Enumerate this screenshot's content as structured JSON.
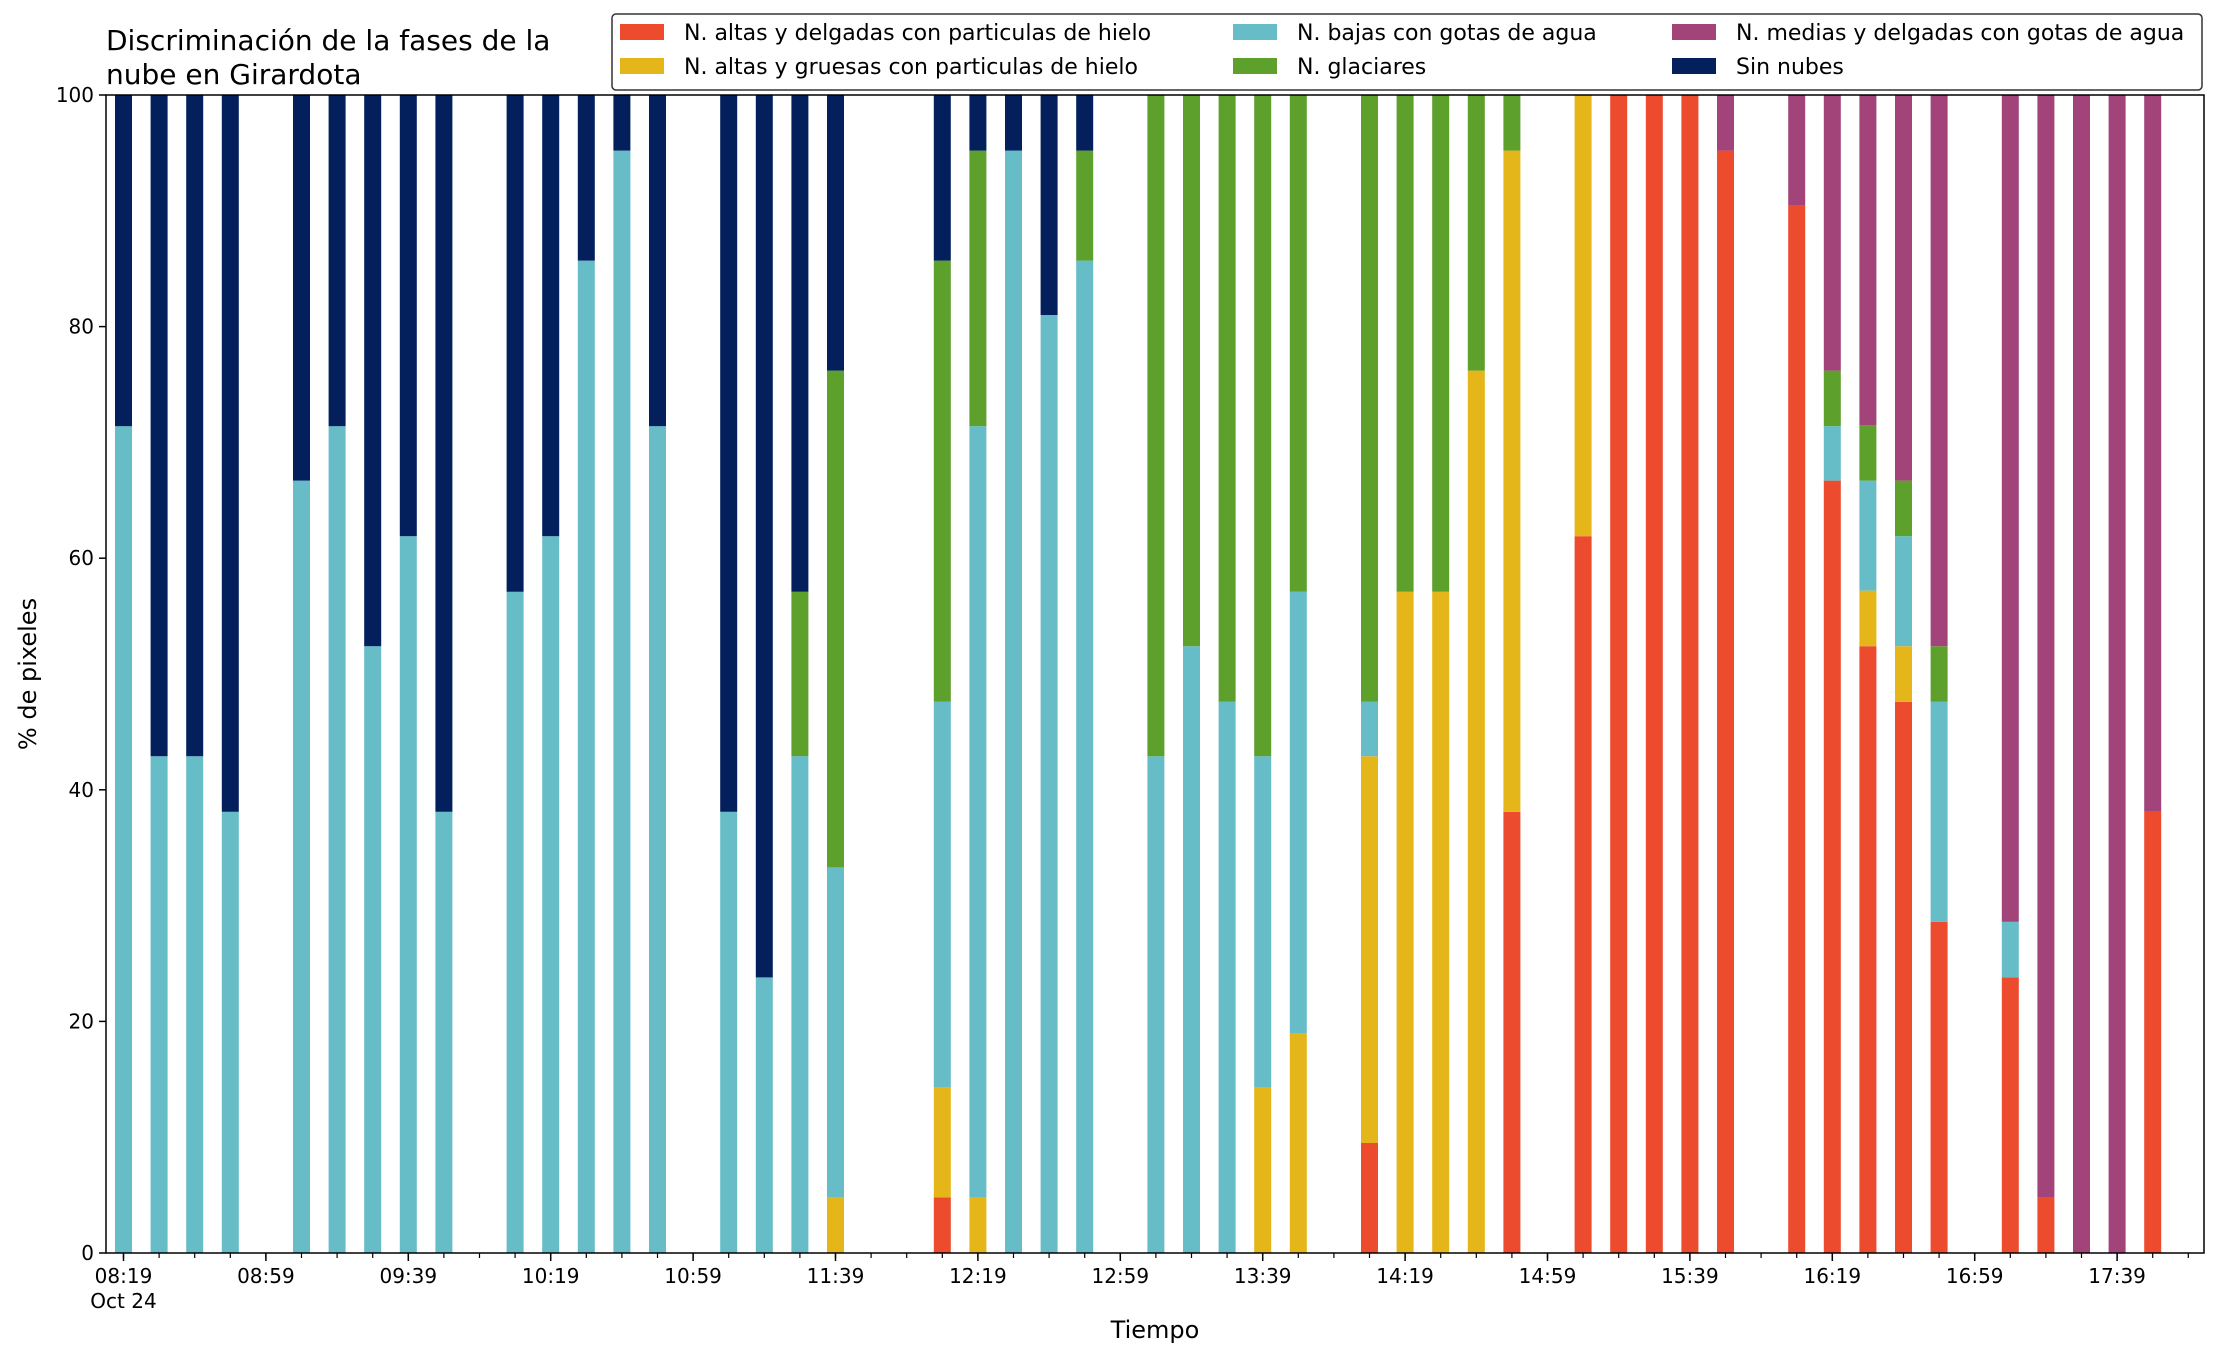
{
  "chart_data": {
    "type": "bar",
    "stacked": true,
    "title_lines": [
      "Discriminación de la fases de la",
      "nube en Girardota"
    ],
    "xlabel": "Tiempo",
    "ylabel": "% de pixeles",
    "ylim": [
      0,
      100
    ],
    "yticks": [
      0,
      20,
      40,
      60,
      80,
      100
    ],
    "x_start": "08:19",
    "x_step_minutes": 10,
    "x_count": 59,
    "x_ticks": [
      {
        "index": 0,
        "label": "08:19",
        "sublabel": "Oct 24"
      },
      {
        "index": 4,
        "label": "08:59"
      },
      {
        "index": 8,
        "label": "09:39"
      },
      {
        "index": 12,
        "label": "10:19"
      },
      {
        "index": 16,
        "label": "10:59"
      },
      {
        "index": 20,
        "label": "11:39"
      },
      {
        "index": 24,
        "label": "12:19"
      },
      {
        "index": 28,
        "label": "12:59"
      },
      {
        "index": 32,
        "label": "13:39"
      },
      {
        "index": 36,
        "label": "14:19"
      },
      {
        "index": 40,
        "label": "14:59"
      },
      {
        "index": 44,
        "label": "15:39"
      },
      {
        "index": 48,
        "label": "16:19"
      },
      {
        "index": 52,
        "label": "16:59"
      },
      {
        "index": 56,
        "label": "17:39"
      }
    ],
    "grid": false,
    "legend_position": "top-right",
    "series": [
      {
        "name": "N. altas y delgadas con particulas de hielo",
        "color": "#ed4b2e"
      },
      {
        "name": "N. altas y gruesas con particulas de hielo",
        "color": "#e5b619"
      },
      {
        "name": "N. bajas con gotas de agua",
        "color": "#66bdc8"
      },
      {
        "name": "N. glaciares",
        "color": "#5ea02c"
      },
      {
        "name": "N. medias y delgadas con gotas de agua",
        "color": "#a2447a"
      },
      {
        "name": "Sin nubes",
        "color": "#03205d"
      }
    ],
    "bars": [
      {
        "index": 0,
        "time": "08:19",
        "values": [
          0,
          0,
          71.4,
          0,
          0,
          28.6
        ]
      },
      {
        "index": 1,
        "time": "08:29",
        "values": [
          0,
          0,
          42.9,
          0,
          0,
          57.1
        ]
      },
      {
        "index": 2,
        "time": "08:39",
        "values": [
          0,
          0,
          42.9,
          0,
          0,
          57.1
        ]
      },
      {
        "index": 3,
        "time": "08:49",
        "values": [
          0,
          0,
          38.1,
          0,
          0,
          61.9
        ]
      },
      {
        "index": 5,
        "time": "09:09",
        "values": [
          0,
          0,
          66.7,
          0,
          0,
          33.3
        ]
      },
      {
        "index": 6,
        "time": "09:19",
        "values": [
          0,
          0,
          71.4,
          0,
          0,
          28.6
        ]
      },
      {
        "index": 7,
        "time": "09:29",
        "values": [
          0,
          0,
          52.4,
          0,
          0,
          47.6
        ]
      },
      {
        "index": 8,
        "time": "09:39",
        "values": [
          0,
          0,
          61.9,
          0,
          0,
          38.1
        ]
      },
      {
        "index": 9,
        "time": "09:49",
        "values": [
          0,
          0,
          38.1,
          0,
          0,
          61.9
        ]
      },
      {
        "index": 11,
        "time": "10:09",
        "values": [
          0,
          0,
          57.1,
          0,
          0,
          42.9
        ]
      },
      {
        "index": 12,
        "time": "10:19",
        "values": [
          0,
          0,
          61.9,
          0,
          0,
          38.1
        ]
      },
      {
        "index": 13,
        "time": "10:29",
        "values": [
          0,
          0,
          85.7,
          0,
          0,
          14.3
        ]
      },
      {
        "index": 14,
        "time": "10:39",
        "values": [
          0,
          0,
          95.2,
          0,
          0,
          4.8
        ]
      },
      {
        "index": 15,
        "time": "10:49",
        "values": [
          0,
          0,
          71.4,
          0,
          0,
          28.6
        ]
      },
      {
        "index": 17,
        "time": "11:09",
        "values": [
          0,
          0,
          38.1,
          0,
          0,
          61.9
        ]
      },
      {
        "index": 18,
        "time": "11:19",
        "values": [
          0,
          0,
          23.8,
          0,
          0,
          76.2
        ]
      },
      {
        "index": 19,
        "time": "11:29",
        "values": [
          0,
          0,
          42.9,
          14.2,
          0,
          42.9
        ]
      },
      {
        "index": 20,
        "time": "11:39",
        "values": [
          0,
          4.8,
          28.5,
          42.9,
          0,
          23.8
        ]
      },
      {
        "index": 23,
        "time": "12:09",
        "values": [
          4.8,
          9.5,
          33.3,
          38.1,
          0,
          14.3
        ]
      },
      {
        "index": 24,
        "time": "12:19",
        "values": [
          0,
          4.8,
          66.6,
          23.8,
          0,
          4.8
        ]
      },
      {
        "index": 25,
        "time": "12:29",
        "values": [
          0,
          0,
          95.2,
          0,
          0,
          4.8
        ]
      },
      {
        "index": 26,
        "time": "12:39",
        "values": [
          0,
          0,
          81.0,
          0,
          0,
          19.0
        ]
      },
      {
        "index": 27,
        "time": "12:49",
        "values": [
          0,
          0,
          85.7,
          9.5,
          0,
          4.8
        ]
      },
      {
        "index": 29,
        "time": "13:09",
        "values": [
          0,
          0,
          42.9,
          57.1,
          0,
          0
        ]
      },
      {
        "index": 30,
        "time": "13:19",
        "values": [
          0,
          0,
          52.4,
          47.6,
          0,
          0
        ]
      },
      {
        "index": 31,
        "time": "13:29",
        "values": [
          0,
          0,
          47.6,
          52.4,
          0,
          0
        ]
      },
      {
        "index": 32,
        "time": "13:39",
        "values": [
          0,
          14.3,
          28.6,
          57.1,
          0,
          0
        ]
      },
      {
        "index": 33,
        "time": "13:49",
        "values": [
          0,
          19.0,
          38.1,
          42.9,
          0,
          0
        ]
      },
      {
        "index": 35,
        "time": "14:09",
        "values": [
          9.5,
          33.4,
          4.7,
          52.4,
          0,
          0
        ]
      },
      {
        "index": 36,
        "time": "14:19",
        "values": [
          0,
          57.1,
          0,
          42.9,
          0,
          0
        ]
      },
      {
        "index": 37,
        "time": "14:29",
        "values": [
          0,
          57.1,
          0,
          42.9,
          0,
          0
        ]
      },
      {
        "index": 38,
        "time": "14:39",
        "values": [
          0,
          76.2,
          0,
          23.8,
          0,
          0
        ]
      },
      {
        "index": 39,
        "time": "14:49",
        "values": [
          38.1,
          57.1,
          0,
          4.8,
          0,
          0
        ]
      },
      {
        "index": 41,
        "time": "15:09",
        "values": [
          61.9,
          38.1,
          0,
          0,
          0,
          0
        ]
      },
      {
        "index": 42,
        "time": "15:19",
        "values": [
          100,
          0,
          0,
          0,
          0,
          0
        ]
      },
      {
        "index": 43,
        "time": "15:29",
        "values": [
          100,
          0,
          0,
          0,
          0,
          0
        ]
      },
      {
        "index": 44,
        "time": "15:39",
        "values": [
          100,
          0,
          0,
          0,
          0,
          0
        ]
      },
      {
        "index": 45,
        "time": "15:49",
        "values": [
          95.2,
          0,
          0,
          0,
          4.8,
          0
        ]
      },
      {
        "index": 47,
        "time": "16:09",
        "values": [
          90.5,
          0,
          0,
          0,
          9.5,
          0
        ]
      },
      {
        "index": 48,
        "time": "16:19",
        "values": [
          66.7,
          0,
          4.7,
          4.8,
          23.8,
          0
        ]
      },
      {
        "index": 49,
        "time": "16:29",
        "values": [
          52.4,
          4.8,
          9.5,
          4.8,
          28.5,
          0
        ]
      },
      {
        "index": 50,
        "time": "16:39",
        "values": [
          47.6,
          4.8,
          9.5,
          4.8,
          33.3,
          0
        ]
      },
      {
        "index": 51,
        "time": "16:49",
        "values": [
          28.6,
          0,
          19.0,
          4.8,
          47.6,
          0
        ]
      },
      {
        "index": 53,
        "time": "17:09",
        "values": [
          23.8,
          0,
          4.8,
          0,
          71.4,
          0
        ]
      },
      {
        "index": 54,
        "time": "17:19",
        "values": [
          4.8,
          0,
          0,
          0,
          95.2,
          0
        ]
      },
      {
        "index": 55,
        "time": "17:29",
        "values": [
          0,
          0,
          0,
          0,
          100,
          0
        ]
      },
      {
        "index": 56,
        "time": "17:39",
        "values": [
          0,
          0,
          0,
          0,
          100,
          0
        ]
      },
      {
        "index": 57,
        "time": "17:49",
        "values": [
          38.1,
          0,
          0,
          0,
          61.9,
          0
        ]
      }
    ]
  }
}
